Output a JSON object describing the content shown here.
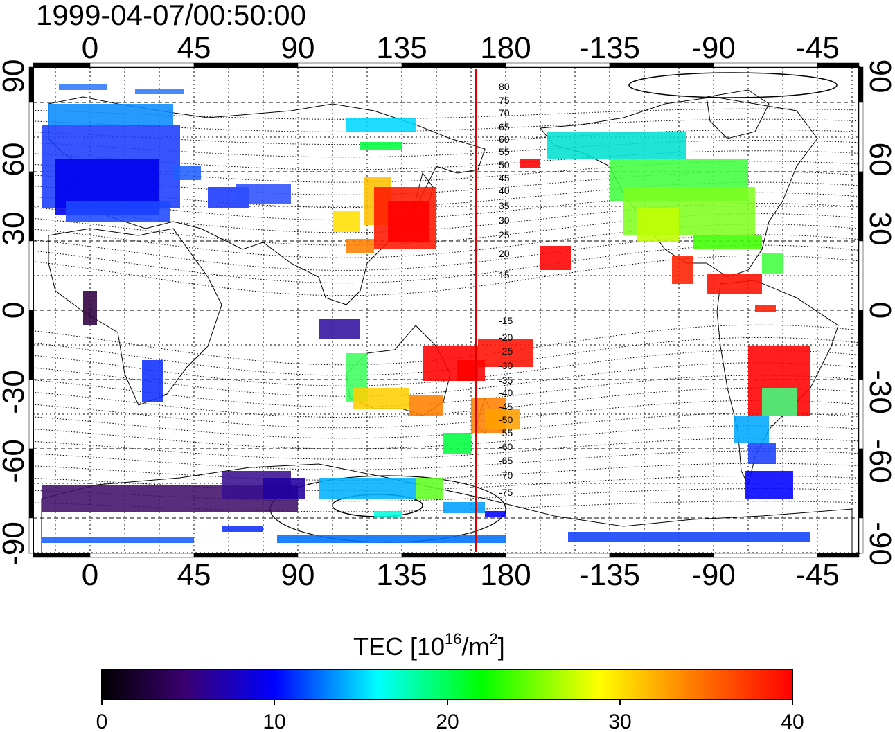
{
  "title": "1999-04-07/00:50:00",
  "map": {
    "lon_ticks": [
      "0",
      "45",
      "90",
      "135",
      "180",
      "-135",
      "-90",
      "-45"
    ],
    "lat_ticks": [
      "90",
      "60",
      "30",
      "0",
      "-30",
      "-60",
      "-90"
    ],
    "contour_labels_north": [
      "80",
      "75",
      "70",
      "65",
      "60",
      "55",
      "50",
      "45",
      "40",
      "35",
      "30",
      "25",
      "20",
      "15"
    ],
    "contour_labels_south": [
      "-15",
      "-20",
      "-25",
      "-30",
      "-35",
      "-40",
      "-45",
      "-50",
      "-55",
      "-60",
      "-65",
      "-70",
      "-75"
    ]
  },
  "colorbar": {
    "title_main": "TEC  [10",
    "title_sup": "16",
    "title_mid": "/m",
    "title_sup2": "2",
    "title_end": "]",
    "tick_labels": [
      "0",
      "10",
      "20",
      "30",
      "40"
    ],
    "colors": [
      "#000000",
      "#400080",
      "#0000ff",
      "#00ffff",
      "#00ff00",
      "#ffff00",
      "#ff8000",
      "#ff0000"
    ]
  },
  "legend": {}
}
